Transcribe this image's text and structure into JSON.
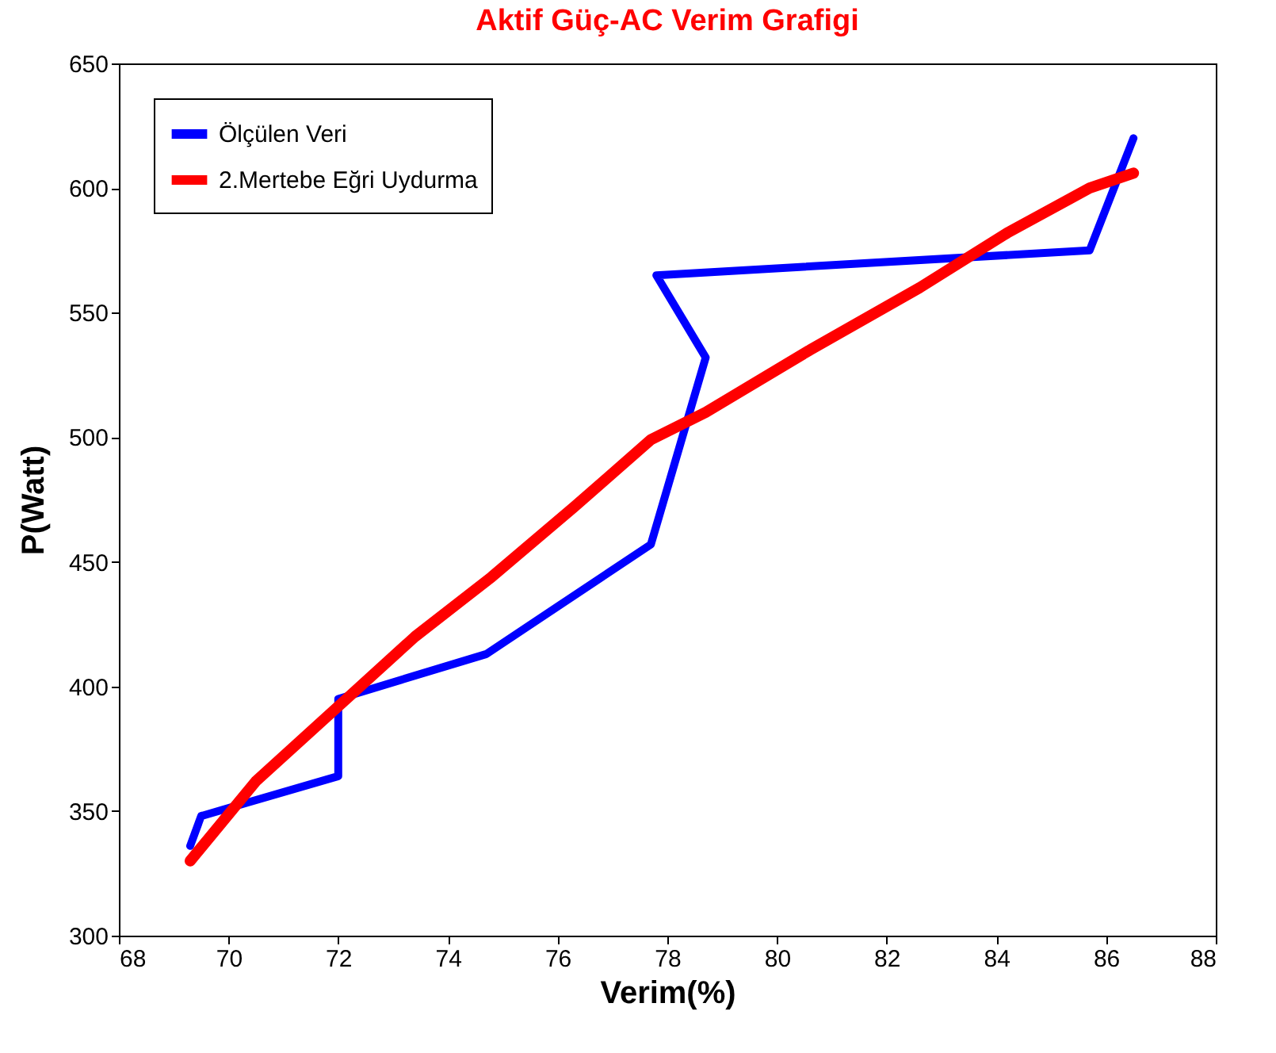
{
  "chart_data": {
    "type": "line",
    "title": "Aktif Güç-AC Verim Grafigi",
    "xlabel": "Verim(%)",
    "ylabel": "P(Watt)",
    "xlim": [
      68,
      88
    ],
    "ylim": [
      300,
      650
    ],
    "xticks": [
      68,
      70,
      72,
      74,
      76,
      78,
      80,
      82,
      84,
      86,
      88
    ],
    "yticks": [
      300,
      350,
      400,
      450,
      500,
      550,
      600,
      650
    ],
    "grid": false,
    "legend": "top left",
    "line_style": "solid",
    "marker": "none",
    "series": [
      {
        "name": "Ölçülen Veri",
        "color": "#0000ff",
        "x": [
          69.3,
          69.5,
          72.0,
          72.0,
          74.7,
          77.7,
          78.7,
          77.8,
          85.7,
          86.5
        ],
        "values": [
          336,
          348,
          364,
          395,
          413,
          457,
          532,
          565,
          575,
          620
        ]
      },
      {
        "name": "2.Mertebe Eğri Uydurma",
        "color": "#ff0000",
        "x": [
          69.3,
          70.5,
          72.0,
          73.4,
          74.8,
          76.3,
          77.7,
          78.7,
          80.6,
          82.6,
          84.2,
          85.7,
          86.5
        ],
        "values": [
          330,
          362,
          392,
          420,
          444,
          472,
          499,
          510,
          535,
          560,
          582,
          600,
          606
        ]
      }
    ]
  }
}
